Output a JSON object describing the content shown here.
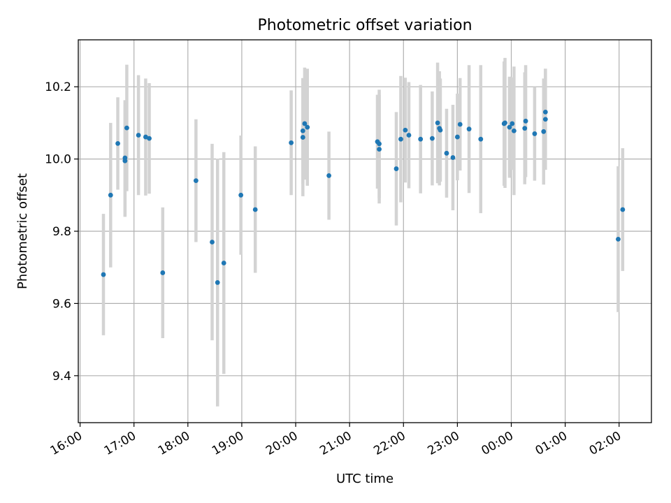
{
  "chart_data": {
    "type": "scatter",
    "title": "Photometric offset variation",
    "xlabel": "UTC time",
    "ylabel": "Photometric offset",
    "x_ticks": [
      "16:00",
      "17:00",
      "18:00",
      "19:00",
      "20:00",
      "21:00",
      "22:00",
      "23:00",
      "00:00",
      "01:00",
      "02:00"
    ],
    "y_ticks": [
      "9.4",
      "9.6",
      "9.8",
      "10.0",
      "10.2"
    ],
    "ylim": [
      9.27,
      10.33
    ],
    "xlim": [
      "15:58",
      "26:36"
    ],
    "grid": true,
    "marker_color": "#1f77b4",
    "errorbar_color": "#d3d3d3",
    "series": [
      {
        "points": [
          {
            "t": "16:26",
            "y": 9.68,
            "err": 0.168
          },
          {
            "t": "16:34",
            "y": 9.9,
            "err": 0.2
          },
          {
            "t": "16:42",
            "y": 10.043,
            "err": 0.128
          },
          {
            "t": "16:50",
            "y": 9.995,
            "err": 0.155
          },
          {
            "t": "16:50",
            "y": 10.003,
            "err": 0.16
          },
          {
            "t": "16:52",
            "y": 10.086,
            "err": 0.175
          },
          {
            "t": "17:05",
            "y": 10.066,
            "err": 0.166
          },
          {
            "t": "17:13",
            "y": 10.061,
            "err": 0.162
          },
          {
            "t": "17:17",
            "y": 10.057,
            "err": 0.153
          },
          {
            "t": "17:32",
            "y": 9.685,
            "err": 0.181
          },
          {
            "t": "18:09",
            "y": 9.94,
            "err": 0.17
          },
          {
            "t": "18:27",
            "y": 9.77,
            "err": 0.272
          },
          {
            "t": "18:33",
            "y": 9.658,
            "err": 0.343
          },
          {
            "t": "18:40",
            "y": 9.712,
            "err": 0.307
          },
          {
            "t": "18:59",
            "y": 9.9,
            "err": 0.165
          },
          {
            "t": "19:15",
            "y": 9.86,
            "err": 0.175
          },
          {
            "t": "19:55",
            "y": 10.045,
            "err": 0.145
          },
          {
            "t": "20:08",
            "y": 10.06,
            "err": 0.163
          },
          {
            "t": "20:08",
            "y": 10.078,
            "err": 0.146
          },
          {
            "t": "20:10",
            "y": 10.098,
            "err": 0.155
          },
          {
            "t": "20:13",
            "y": 10.088,
            "err": 0.162
          },
          {
            "t": "20:37",
            "y": 9.954,
            "err": 0.122
          },
          {
            "t": "21:31",
            "y": 10.048,
            "err": 0.13
          },
          {
            "t": "21:33",
            "y": 10.042,
            "err": 0.15
          },
          {
            "t": "21:33",
            "y": 10.027,
            "err": 0.15
          },
          {
            "t": "21:52",
            "y": 9.973,
            "err": 0.157
          },
          {
            "t": "21:57",
            "y": 10.055,
            "err": 0.175
          },
          {
            "t": "22:02",
            "y": 10.08,
            "err": 0.145
          },
          {
            "t": "22:06",
            "y": 10.066,
            "err": 0.147
          },
          {
            "t": "22:19",
            "y": 10.055,
            "err": 0.15
          },
          {
            "t": "22:32",
            "y": 10.057,
            "err": 0.13
          },
          {
            "t": "22:38",
            "y": 10.1,
            "err": 0.167
          },
          {
            "t": "22:40",
            "y": 10.085,
            "err": 0.158
          },
          {
            "t": "22:41",
            "y": 10.08,
            "err": 0.143
          },
          {
            "t": "22:48",
            "y": 10.016,
            "err": 0.123
          },
          {
            "t": "22:55",
            "y": 10.004,
            "err": 0.146
          },
          {
            "t": "23:00",
            "y": 10.061,
            "err": 0.12
          },
          {
            "t": "23:03",
            "y": 10.096,
            "err": 0.128
          },
          {
            "t": "23:13",
            "y": 10.083,
            "err": 0.177
          },
          {
            "t": "23:26",
            "y": 10.055,
            "err": 0.205
          },
          {
            "t": "23:52",
            "y": 10.098,
            "err": 0.172
          },
          {
            "t": "23:53",
            "y": 10.1,
            "err": 0.18
          },
          {
            "t": "23:58",
            "y": 10.088,
            "err": 0.14
          },
          {
            "t": "24:01",
            "y": 10.098,
            "err": 0.128
          },
          {
            "t": "24:03",
            "y": 10.078,
            "err": 0.178
          },
          {
            "t": "24:15",
            "y": 10.085,
            "err": 0.155
          },
          {
            "t": "24:16",
            "y": 10.105,
            "err": 0.155
          },
          {
            "t": "24:26",
            "y": 10.07,
            "err": 0.13
          },
          {
            "t": "24:36",
            "y": 10.076,
            "err": 0.147
          },
          {
            "t": "24:38",
            "y": 10.13,
            "err": 0.12
          },
          {
            "t": "24:38",
            "y": 10.11,
            "err": 0.14
          },
          {
            "t": "25:59",
            "y": 9.778,
            "err": 0.202
          },
          {
            "t": "26:04",
            "y": 9.86,
            "err": 0.17
          }
        ]
      }
    ]
  }
}
